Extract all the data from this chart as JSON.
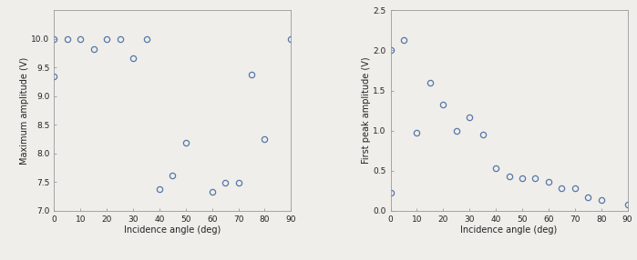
{
  "left": {
    "x": [
      0,
      0,
      5,
      10,
      15,
      20,
      25,
      30,
      35,
      40,
      45,
      50,
      60,
      65,
      70,
      75,
      80,
      90
    ],
    "y": [
      9.35,
      10.0,
      10.0,
      10.0,
      9.83,
      10.0,
      10.0,
      9.67,
      10.0,
      7.38,
      7.62,
      8.18,
      7.33,
      7.48,
      7.48,
      9.38,
      8.25,
      10.0
    ],
    "xlabel": "Incidence angle (deg)",
    "ylabel": "Maximum amplitude (V)",
    "xlim": [
      0,
      90
    ],
    "ylim": [
      7,
      10.5
    ],
    "yticks": [
      7.0,
      7.5,
      8.0,
      8.5,
      9.0,
      9.5,
      10.0
    ],
    "xticks": [
      0,
      10,
      20,
      30,
      40,
      50,
      60,
      70,
      80,
      90
    ]
  },
  "right": {
    "x": [
      0,
      0,
      5,
      10,
      15,
      20,
      25,
      30,
      35,
      40,
      45,
      50,
      55,
      60,
      65,
      70,
      75,
      80,
      90
    ],
    "y": [
      0.22,
      2.0,
      2.13,
      0.97,
      1.6,
      1.32,
      1.0,
      1.17,
      0.95,
      0.53,
      0.43,
      0.4,
      0.4,
      0.36,
      0.28,
      0.28,
      0.17,
      0.13,
      0.07
    ],
    "xlabel": "Incidence angle (deg)",
    "ylabel": "First peak amplitude (V)",
    "xlim": [
      0,
      90
    ],
    "ylim": [
      0,
      2.5
    ],
    "yticks": [
      0.0,
      0.5,
      1.0,
      1.5,
      2.0,
      2.5
    ],
    "xticks": [
      0,
      10,
      20,
      30,
      40,
      50,
      60,
      70,
      80,
      90
    ]
  },
  "marker_edge_color": "#5577aa",
  "marker_size": 4.5,
  "marker_style": "o",
  "bg_color": "#f0eeea",
  "axis_color": "#999999",
  "label_fontsize": 7,
  "tick_fontsize": 6.5
}
